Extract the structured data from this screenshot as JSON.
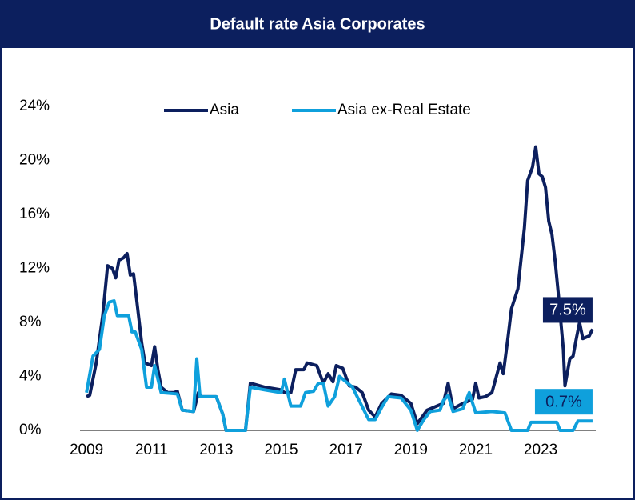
{
  "chart_data": {
    "type": "line",
    "title": "Default rate Asia Corporates",
    "xlim": [
      2008.8,
      2024.7
    ],
    "xticks": [
      2009,
      2011,
      2013,
      2015,
      2017,
      2019,
      2021,
      2023
    ],
    "ylim": [
      0,
      24
    ],
    "yticks": [
      {
        "value": 0,
        "label": "0%"
      },
      {
        "value": 4,
        "label": "4%"
      },
      {
        "value": 8,
        "label": "8%"
      },
      {
        "value": 12,
        "label": "12%"
      },
      {
        "value": 16,
        "label": "16%"
      },
      {
        "value": 20,
        "label": "20%"
      },
      {
        "value": 24,
        "label": "24%"
      }
    ],
    "grid": false,
    "legend": "top",
    "series": [
      {
        "name": "Asia",
        "color": "#0c1f5e",
        "last_label": "7.5%",
        "x": [
          2009.0,
          2009.1,
          2009.3,
          2009.5,
          2009.65,
          2009.8,
          2009.9,
          2010.0,
          2010.15,
          2010.25,
          2010.35,
          2010.45,
          2010.55,
          2010.7,
          2010.8,
          2011.0,
          2011.1,
          2011.2,
          2011.3,
          2011.5,
          2011.7,
          2011.8,
          2011.95,
          2012.3,
          2012.45,
          2012.55,
          2013.0,
          2013.2,
          2013.3,
          2013.9,
          2014.05,
          2014.5,
          2015.0,
          2015.1,
          2015.3,
          2015.45,
          2015.7,
          2015.8,
          2016.1,
          2016.3,
          2016.45,
          2016.6,
          2016.7,
          2016.9,
          2017.1,
          2017.3,
          2017.5,
          2017.7,
          2017.9,
          2018.1,
          2018.4,
          2018.7,
          2019.0,
          2019.2,
          2019.5,
          2019.8,
          2020.0,
          2020.15,
          2020.3,
          2020.6,
          2020.9,
          2021.0,
          2021.1,
          2021.3,
          2021.5,
          2021.75,
          2021.85,
          2022.0,
          2022.1,
          2022.3,
          2022.5,
          2022.6,
          2022.75,
          2022.85,
          2022.95,
          2023.05,
          2023.15,
          2023.25,
          2023.35,
          2023.45,
          2023.55,
          2023.7,
          2023.75,
          2023.9,
          2024.0,
          2024.1,
          2024.2,
          2024.3,
          2024.5,
          2024.6
        ],
        "values": [
          2.5,
          2.6,
          5,
          8.5,
          12.2,
          12,
          11.3,
          12.6,
          12.8,
          13.1,
          11.5,
          11.6,
          9.6,
          6.5,
          5,
          4.8,
          6.2,
          4.5,
          3.2,
          2.8,
          2.8,
          2.9,
          1.5,
          1.4,
          2.8,
          2.5,
          2.5,
          1.2,
          0,
          0,
          3.5,
          3.2,
          3,
          2.8,
          2.8,
          4.5,
          4.5,
          5,
          4.8,
          3.5,
          4.2,
          3.6,
          4.8,
          4.6,
          3.3,
          3.2,
          2.8,
          1.5,
          1,
          2,
          2.7,
          2.6,
          2,
          0.5,
          1.5,
          1.8,
          2,
          3.5,
          1.6,
          2,
          2.3,
          3.5,
          2.4,
          2.5,
          2.8,
          5,
          4.2,
          7,
          9,
          10.5,
          15,
          18.5,
          19.5,
          21,
          19,
          18.8,
          18,
          15.5,
          14.5,
          12.5,
          10,
          6,
          3.3,
          5.3,
          5.5,
          6.8,
          8,
          6.8,
          7.0,
          7.5
        ]
      },
      {
        "name": "Asia ex-Real Estate",
        "color": "#0fa0dc",
        "last_label": "0.7%",
        "x": [
          2009.0,
          2009.2,
          2009.4,
          2009.55,
          2009.7,
          2009.85,
          2009.95,
          2010.3,
          2010.4,
          2010.5,
          2010.7,
          2010.85,
          2011.0,
          2011.1,
          2011.3,
          2011.8,
          2011.95,
          2012.3,
          2012.4,
          2012.5,
          2013.0,
          2013.2,
          2013.3,
          2013.9,
          2014.05,
          2014.5,
          2015.0,
          2015.1,
          2015.3,
          2015.6,
          2015.75,
          2016.0,
          2016.15,
          2016.3,
          2016.45,
          2016.65,
          2016.8,
          2017.2,
          2017.45,
          2017.7,
          2017.9,
          2018.1,
          2018.3,
          2018.7,
          2019.0,
          2019.2,
          2019.4,
          2019.6,
          2019.9,
          2020.0,
          2020.15,
          2020.3,
          2020.6,
          2020.8,
          2021.0,
          2021.5,
          2021.9,
          2022.1,
          2022.6,
          2022.7,
          2023.5,
          2023.6,
          2024.0,
          2024.15,
          2024.6
        ],
        "values": [
          2.8,
          5.5,
          6,
          8.5,
          9.5,
          9.6,
          8.5,
          8.5,
          7.3,
          7.3,
          6,
          3.2,
          3.2,
          4.8,
          2.8,
          2.7,
          1.5,
          1.4,
          5.3,
          2.5,
          2.5,
          1.2,
          0,
          0,
          3.2,
          3,
          2.8,
          3.8,
          1.8,
          1.8,
          2.8,
          2.9,
          3.5,
          3.5,
          1.8,
          2.5,
          4,
          3.2,
          2,
          0.8,
          0.8,
          1.7,
          2.5,
          2.4,
          1.5,
          0,
          0.8,
          1.4,
          1.5,
          2.2,
          2.6,
          1.4,
          1.6,
          2.8,
          1.3,
          1.4,
          1.3,
          0,
          0,
          0.6,
          0.6,
          0,
          0,
          0.7,
          0.7
        ]
      }
    ]
  }
}
